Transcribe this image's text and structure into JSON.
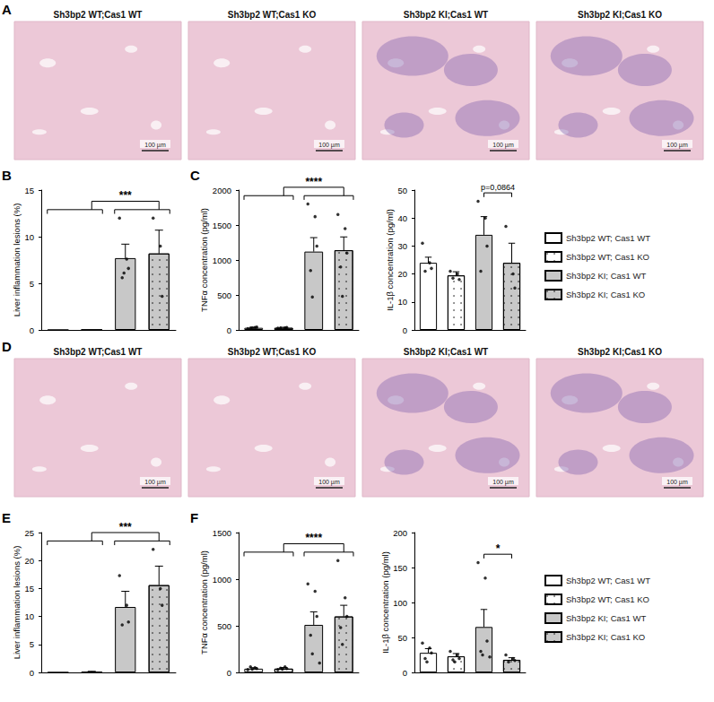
{
  "image_panels": [
    {
      "panel": "A",
      "titles": [
        "Sh3bp2 WT;Cas1 WT",
        "Sh3bp2 WT;Cas1 KO",
        "Sh3bp2 KI;Cas1 WT",
        "Sh3bp2 KI;Cas1 KO"
      ],
      "scale_bar": "100 µm"
    },
    {
      "panel": "D",
      "titles": [
        "Sh3bp2 WT;Cas1 WT",
        "Sh3bp2 WT;Cas1 KO",
        "Sh3bp2 KI;Cas1 WT",
        "Sh3bp2 KI;Cas1 KO"
      ],
      "scale_bar": "100 µm"
    }
  ],
  "chart_data": [
    {
      "panel": "B",
      "type": "bar",
      "ylabel": "Liver inflammation lesions (%)",
      "categories": [
        null,
        null,
        null,
        null
      ],
      "ylim": [
        0,
        15
      ],
      "yticks": [
        0,
        5,
        10,
        15
      ],
      "grid": false,
      "tick_labels": "y",
      "series": [
        {
          "name": "Sh3bp2 WT; Cas1 WT",
          "color": "#ffffff",
          "values": [
            0,
            null,
            null,
            null
          ],
          "errors": [
            0,
            null,
            null,
            null
          ],
          "points": []
        },
        {
          "name": "Sh3bp2 WT; Cas1 KO",
          "color": "#ffffff",
          "values": [
            null,
            0,
            null,
            null
          ],
          "errors": [
            null,
            0,
            null,
            null
          ],
          "points": []
        },
        {
          "name": "Sh3bp2 KI; Cas1 WT",
          "color": "#c8c8c8",
          "values": [
            null,
            null,
            7.7,
            null
          ],
          "errors": [
            null,
            null,
            1.5,
            null
          ],
          "points": [
            12,
            7.6,
            6.6,
            5.6,
            6.1
          ]
        },
        {
          "name": "Sh3bp2 KI; Cas1 KO",
          "color": "#c8c8c8",
          "values": [
            null,
            null,
            null,
            8.2
          ],
          "errors": [
            null,
            null,
            null,
            2.5
          ],
          "points": [
            12,
            9,
            3.6
          ]
        }
      ],
      "brackets": [
        {
          "label": "***",
          "left": [
            0,
            1
          ],
          "right": [
            2,
            3
          ]
        }
      ]
    },
    {
      "panel": "C",
      "type": "bar",
      "ylabel": "TNFα concentration (pg/ml)",
      "categories": [
        null,
        null,
        null,
        null
      ],
      "ylim": [
        0,
        2000
      ],
      "yticks": [
        0,
        500,
        1000,
        1500,
        2000
      ],
      "grid": false,
      "tick_labels": "y",
      "series": [
        {
          "name": "Sh3bp2 WT; Cas1 WT",
          "color": "#ffffff",
          "values": [
            30,
            null,
            null,
            null
          ],
          "errors": [
            8,
            null,
            null,
            null
          ],
          "points": [
            20,
            35,
            40,
            25,
            30
          ]
        },
        {
          "name": "Sh3bp2 WT; Cas1 KO",
          "color": "#ffffff",
          "values": [
            null,
            30,
            null,
            null
          ],
          "errors": [
            null,
            8,
            null,
            null
          ],
          "points": [
            25,
            30,
            35,
            30
          ]
        },
        {
          "name": "Sh3bp2 KI; Cas1 WT",
          "color": "#c8c8c8",
          "values": [
            null,
            null,
            1120,
            null
          ],
          "errors": [
            null,
            null,
            200,
            null
          ],
          "points": [
            1800,
            1620,
            1200,
            850,
            470
          ]
        },
        {
          "name": "Sh3bp2 KI; Cas1 KO",
          "color": "#c8c8c8",
          "values": [
            null,
            null,
            null,
            1140
          ],
          "errors": [
            null,
            null,
            null,
            190
          ],
          "points": [
            1650,
            1450,
            1100,
            900,
            480
          ]
        }
      ],
      "brackets": [
        {
          "label": "****",
          "left": [
            0,
            1
          ],
          "right": [
            2,
            3
          ]
        }
      ]
    },
    {
      "type": "bar",
      "ylabel": "IL-1β concentration (pg/ml)",
      "legend": "right",
      "categories": [
        null,
        null,
        null,
        null
      ],
      "ylim": [
        0,
        50
      ],
      "yticks": [
        0,
        10,
        20,
        30,
        40,
        50
      ],
      "grid": false,
      "tick_labels": "y",
      "series": [
        {
          "name": "Sh3bp2 WT; Cas1 WT",
          "color": "#ffffff",
          "values": [
            24,
            null,
            null,
            null
          ],
          "errors": [
            2,
            null,
            null,
            null
          ],
          "points": [
            31,
            24,
            22,
            21
          ]
        },
        {
          "name": "Sh3bp2 WT; Cas1 KO",
          "color": "#ffffff",
          "values": [
            null,
            19.5,
            null,
            null
          ],
          "errors": [
            null,
            1.3,
            null,
            null
          ],
          "points": [
            21,
            20,
            18,
            18.5
          ]
        },
        {
          "name": "Sh3bp2 KI; Cas1 WT",
          "color": "#c8c8c8",
          "values": [
            null,
            null,
            34,
            null
          ],
          "errors": [
            null,
            null,
            6.5,
            null
          ],
          "points": [
            46,
            40,
            30,
            21
          ]
        },
        {
          "name": "Sh3bp2 KI; Cas1 KO",
          "color": "#c8c8c8",
          "values": [
            null,
            null,
            null,
            24
          ],
          "errors": [
            null,
            null,
            null,
            7
          ],
          "points": [
            37,
            20,
            15
          ]
        }
      ],
      "brackets": [
        {
          "label": "p=0,0864",
          "left": [
            2
          ],
          "right": [
            3
          ]
        }
      ]
    },
    {
      "panel": "E",
      "type": "bar",
      "ylabel": "Liver inflammation lesions (%)",
      "categories": [
        null,
        null,
        null,
        null
      ],
      "ylim": [
        0,
        25
      ],
      "yticks": [
        0,
        5,
        10,
        15,
        20,
        25
      ],
      "grid": false,
      "tick_labels": "y",
      "series": [
        {
          "name": "Sh3bp2 WT; Cas1 WT",
          "color": "#ffffff",
          "values": [
            0,
            null,
            null,
            null
          ],
          "errors": [
            0,
            null,
            null,
            null
          ],
          "points": []
        },
        {
          "name": "Sh3bp2 WT; Cas1 KO",
          "color": "#ffffff",
          "values": [
            null,
            0.1,
            null,
            null
          ],
          "errors": [
            null,
            0.1,
            null,
            null
          ],
          "points": []
        },
        {
          "name": "Sh3bp2 KI; Cas1 WT",
          "color": "#c8c8c8",
          "values": [
            null,
            null,
            11.7,
            null
          ],
          "errors": [
            null,
            null,
            2.8,
            null
          ],
          "points": [
            17.3,
            12,
            9,
            8.5
          ]
        },
        {
          "name": "Sh3bp2 KI; Cas1 KO",
          "color": "#c8c8c8",
          "values": [
            null,
            null,
            null,
            15.6
          ],
          "errors": [
            null,
            null,
            null,
            3.4
          ],
          "points": [
            22,
            15,
            12
          ]
        }
      ],
      "brackets": [
        {
          "label": "***",
          "left": [
            0,
            1
          ],
          "right": [
            2,
            3
          ]
        }
      ]
    },
    {
      "panel": "F",
      "type": "bar",
      "ylabel": "TNFα concentration (pg/ml)",
      "categories": [
        null,
        null,
        null,
        null
      ],
      "ylim": [
        0,
        1500
      ],
      "yticks": [
        0,
        500,
        1000,
        1500
      ],
      "grid": false,
      "tick_labels": "y",
      "series": [
        {
          "name": "Sh3bp2 WT; Cas1 WT",
          "color": "#ffffff",
          "values": [
            40,
            null,
            null,
            null
          ],
          "errors": [
            10,
            null,
            null,
            null
          ],
          "points": [
            30,
            50,
            40,
            60,
            35
          ]
        },
        {
          "name": "Sh3bp2 WT; Cas1 KO",
          "color": "#ffffff",
          "values": [
            null,
            40,
            null,
            null
          ],
          "errors": [
            null,
            12,
            null,
            null
          ],
          "points": [
            30,
            60,
            40,
            45,
            35
          ]
        },
        {
          "name": "Sh3bp2 KI; Cas1 WT",
          "color": "#c8c8c8",
          "values": [
            null,
            null,
            510,
            null
          ],
          "errors": [
            null,
            null,
            140,
            null
          ],
          "points": [
            950,
            870,
            600,
            400,
            200,
            100
          ]
        },
        {
          "name": "Sh3bp2 KI; Cas1 KO",
          "color": "#c8c8c8",
          "values": [
            null,
            null,
            null,
            600
          ],
          "errors": [
            null,
            null,
            null,
            120
          ],
          "points": [
            1200,
            800,
            600,
            480,
            300
          ]
        }
      ],
      "brackets": [
        {
          "label": "****",
          "left": [
            0,
            1
          ],
          "right": [
            2,
            3
          ]
        }
      ]
    },
    {
      "type": "bar",
      "ylabel": "IL-1β concentration (pg/ml)",
      "legend": "right",
      "categories": [
        null,
        null,
        null,
        null
      ],
      "ylim": [
        0,
        200
      ],
      "yticks": [
        0,
        50,
        100,
        150,
        200
      ],
      "grid": false,
      "tick_labels": "y",
      "series": [
        {
          "name": "Sh3bp2 WT; Cas1 WT",
          "color": "#ffffff",
          "values": [
            28,
            null,
            null,
            null
          ],
          "errors": [
            6,
            null,
            null,
            null
          ],
          "points": [
            42,
            35,
            28,
            20,
            15
          ]
        },
        {
          "name": "Sh3bp2 WT; Cas1 KO",
          "color": "#ffffff",
          "values": [
            null,
            23,
            null,
            null
          ],
          "errors": [
            null,
            4,
            null,
            null
          ],
          "points": [
            30,
            25,
            20,
            18,
            15
          ]
        },
        {
          "name": "Sh3bp2 KI; Cas1 WT",
          "color": "#c8c8c8",
          "values": [
            null,
            null,
            65,
            null
          ],
          "errors": [
            null,
            null,
            25,
            null
          ],
          "points": [
            157,
            135,
            45,
            30,
            25,
            22
          ]
        },
        {
          "name": "Sh3bp2 KI; Cas1 KO",
          "color": "#c8c8c8",
          "values": [
            null,
            null,
            null,
            18
          ],
          "errors": [
            null,
            null,
            null,
            3
          ],
          "points": [
            25,
            20,
            17,
            15
          ]
        }
      ],
      "brackets": [
        {
          "label": "*",
          "left": [
            2
          ],
          "right": [
            3
          ]
        }
      ]
    }
  ]
}
